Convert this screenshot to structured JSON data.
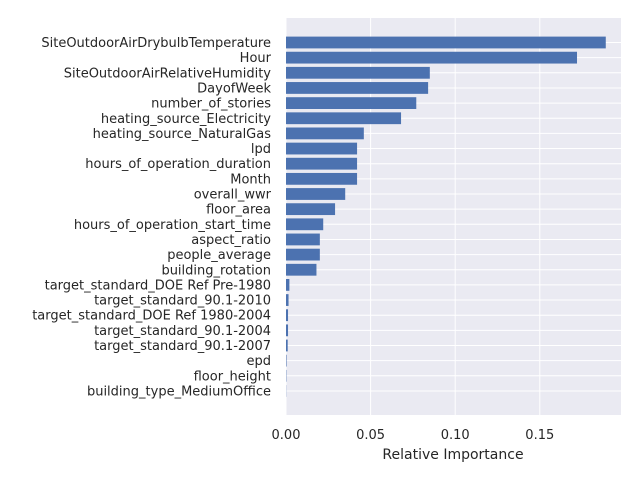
{
  "chart_data": {
    "type": "bar",
    "orientation": "horizontal",
    "xlabel": "Relative Importance",
    "ylabel": "",
    "xlim": [
      0,
      0.198
    ],
    "xticks": [
      0.0,
      0.05,
      0.1,
      0.15
    ],
    "xtick_labels": [
      "0.00",
      "0.05",
      "0.10",
      "0.15"
    ],
    "grid": true,
    "colors": {
      "bar": "#4c72b0",
      "plot_bg": "#eaeaf2",
      "grid": "#ffffff"
    },
    "categories": [
      "SiteOutdoorAirDrybulbTemperature",
      "Hour",
      "SiteOutdoorAirRelativeHumidity",
      "DayofWeek",
      "number_of_stories",
      "heating_source_Electricity",
      "heating_source_NaturalGas",
      "lpd",
      "hours_of_operation_duration",
      "Month",
      "overall_wwr",
      "floor_area",
      "hours_of_operation_start_time",
      "aspect_ratio",
      "people_average",
      "building_rotation",
      "target_standard_DOE Ref Pre-1980",
      "target_standard_90.1-2010",
      "target_standard_DOE Ref 1980-2004",
      "target_standard_90.1-2004",
      "target_standard_90.1-2007",
      "epd",
      "floor_height",
      "building_type_MediumOffice"
    ],
    "values": [
      0.189,
      0.172,
      0.085,
      0.084,
      0.077,
      0.068,
      0.046,
      0.042,
      0.042,
      0.042,
      0.035,
      0.029,
      0.022,
      0.02,
      0.02,
      0.018,
      0.002,
      0.0015,
      0.0012,
      0.0012,
      0.001,
      0.0003,
      0.0002,
      0.0001
    ]
  }
}
